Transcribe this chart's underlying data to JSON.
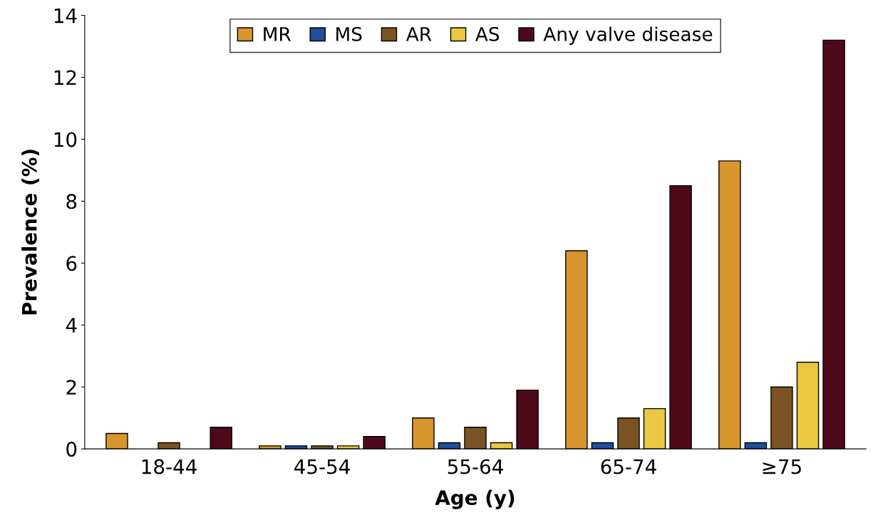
{
  "chart_data": {
    "type": "bar",
    "xlabel": "Age (y)",
    "ylabel": "Prevalence (%)",
    "categories": [
      "18-44",
      "45-54",
      "55-64",
      "65-74",
      "≥75"
    ],
    "series": [
      {
        "name": "MR",
        "color": "#d9952e",
        "values": [
          0.5,
          0.1,
          1.0,
          6.4,
          9.3
        ]
      },
      {
        "name": "MS",
        "color": "#1f4e9e",
        "values": [
          null,
          0.1,
          0.2,
          0.2,
          0.2
        ]
      },
      {
        "name": "AR",
        "color": "#7b5322",
        "values": [
          0.2,
          0.1,
          0.7,
          1.0,
          2.0
        ]
      },
      {
        "name": "AS",
        "color": "#ecc842",
        "values": [
          null,
          0.1,
          0.2,
          1.3,
          2.8
        ]
      },
      {
        "name": "Any valve disease",
        "color": "#4e0a1a",
        "values": [
          0.7,
          0.4,
          1.9,
          8.5,
          13.2
        ]
      }
    ],
    "ylim": [
      0,
      14
    ],
    "yticks": [
      0,
      2,
      4,
      6,
      8,
      10,
      12,
      14
    ],
    "legend": "top",
    "grid": false
  }
}
